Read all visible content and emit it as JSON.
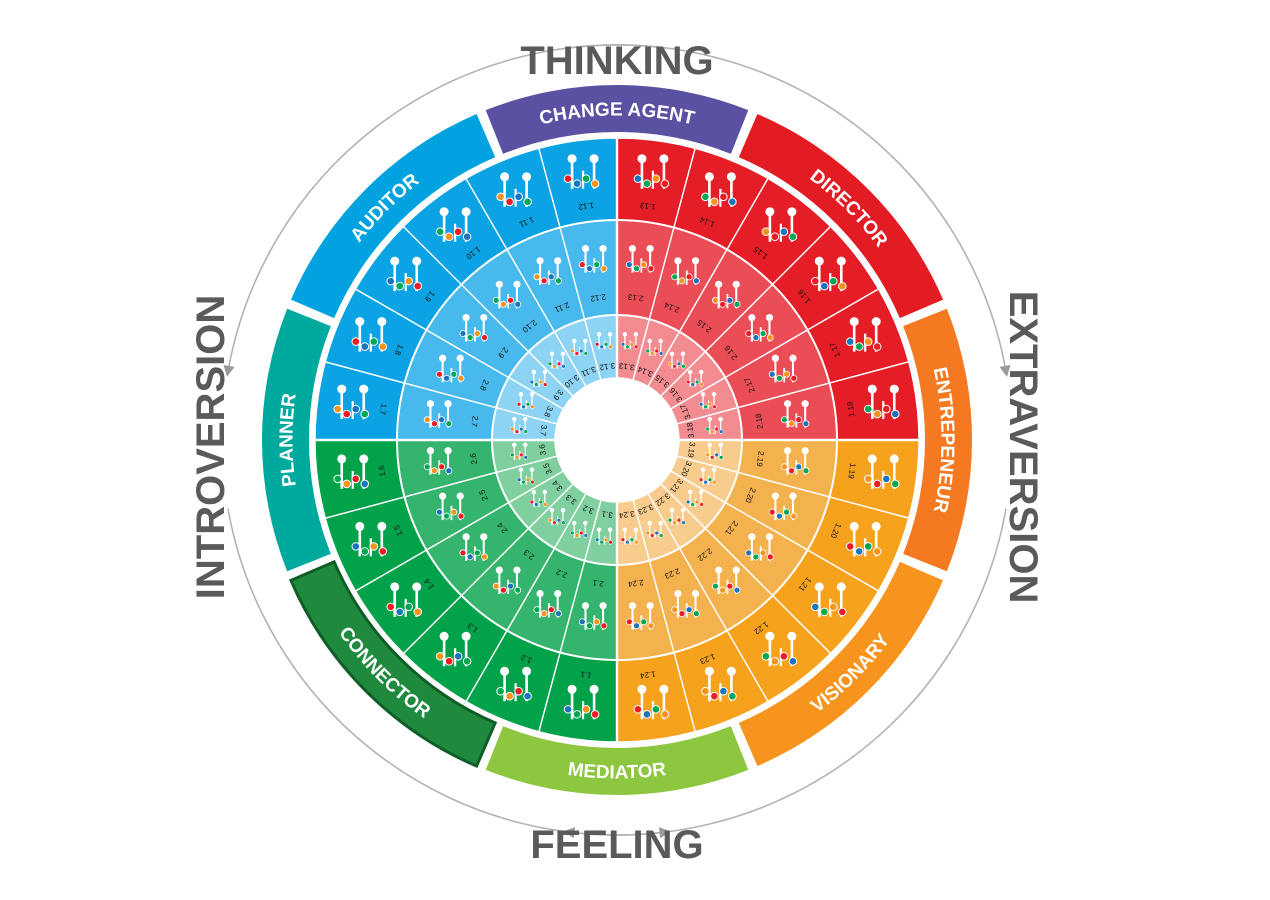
{
  "axes": {
    "top": "THINKING",
    "bottom": "FEELING",
    "left": "INTROVERSION",
    "right": "EXTRAVERSION"
  },
  "roles": [
    {
      "label": "CHANGE AGENT",
      "color": "#5b51a2"
    },
    {
      "label": "DIRECTOR",
      "color": "#e31b23"
    },
    {
      "label": "ENTREPENEUR",
      "color": "#f47920"
    },
    {
      "label": "VISIONARY",
      "color": "#f7941d"
    },
    {
      "label": "MEDIATOR",
      "color": "#8dc63f"
    },
    {
      "label": "CONNECTOR",
      "color": "#1f8a3e"
    },
    {
      "label": "PLANNER",
      "color": "#00a99d"
    },
    {
      "label": "AUDITOR",
      "color": "#00a3e0"
    }
  ],
  "quadrant_colors": {
    "blue": [
      "#0ba3e4",
      "#48b9ec",
      "#8dd3f3"
    ],
    "red": [
      "#e41d26",
      "#ea4d55",
      "#f28c91"
    ],
    "orange": [
      "#f7a21d",
      "#f4b24f",
      "#f8cc8c"
    ],
    "green": [
      "#02a24b",
      "#35b46d",
      "#7fcf9f"
    ]
  },
  "segment_labels": {
    "ring1": [
      "1.1",
      "1.2",
      "1.3",
      "1.4",
      "1.5",
      "1.6",
      "1.7",
      "1.8",
      "1.9",
      "1.10",
      "1.11",
      "1.12",
      "1.13",
      "1.14",
      "1.15",
      "1.16",
      "1.17",
      "1.18",
      "1.19",
      "1.20",
      "1.21",
      "1.22",
      "1.23",
      "1.24"
    ],
    "ring2": [
      "2.1",
      "2.2",
      "2.3",
      "2.4",
      "2.5",
      "2.6",
      "2.7",
      "2.8",
      "2.9",
      "2.10",
      "2.11",
      "2.12",
      "2.13",
      "2.14",
      "2.15",
      "2.16",
      "2.17",
      "2.18",
      "2.19",
      "2.20",
      "2.21",
      "2.22",
      "2.23",
      "2.24"
    ],
    "ring3": [
      "3.1",
      "3.2",
      "3.3",
      "3.4",
      "3.5",
      "3.6",
      "3.7",
      "3.8",
      "3.9",
      "3.10",
      "3.11",
      "3.12",
      "3.13",
      "3.14",
      "3.15",
      "3.16",
      "3.17",
      "3.18",
      "3.19",
      "3.20",
      "3.21",
      "3.22",
      "3.23",
      "3.24"
    ]
  },
  "marker_colors": [
    "#1b75bc",
    "#00a651",
    "#f7941d",
    "#ed1c24"
  ]
}
